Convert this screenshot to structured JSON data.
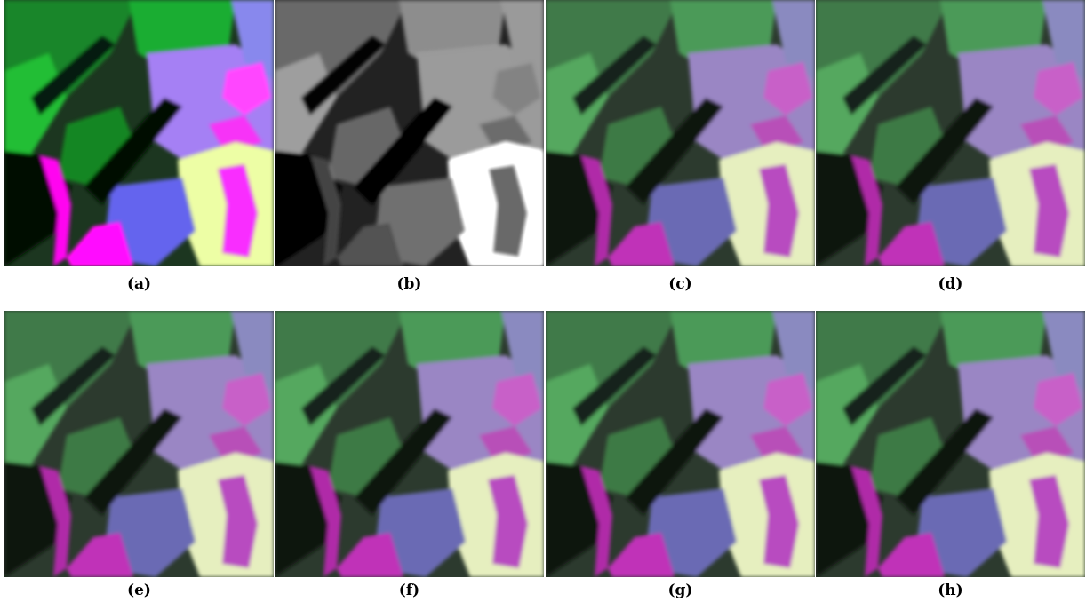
{
  "panels": [
    {
      "caption": "(a)"
    },
    {
      "caption": "(b)"
    },
    {
      "caption": "(c)"
    },
    {
      "caption": "(d)"
    },
    {
      "caption": "(e)"
    },
    {
      "caption": "(f)"
    },
    {
      "caption": "(g)"
    },
    {
      "caption": "(h)"
    }
  ]
}
